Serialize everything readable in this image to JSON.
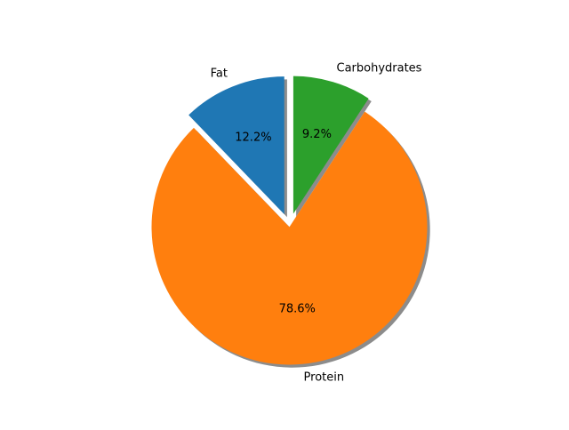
{
  "chart_data": {
    "type": "pie",
    "title": "",
    "labels": [
      "Fat",
      "Protein",
      "Carbohydrates"
    ],
    "values": [
      12.2,
      78.6,
      9.2
    ],
    "value_labels": [
      "12.2%",
      "78.6%",
      "9.2%"
    ],
    "colors": [
      "#1f77b4",
      "#ff7f0e",
      "#2ca02c"
    ],
    "exploded": [
      true,
      false,
      true
    ],
    "shadow": true,
    "start_angle_deg": 90,
    "direction": "counterclockwise",
    "legend": "none"
  }
}
